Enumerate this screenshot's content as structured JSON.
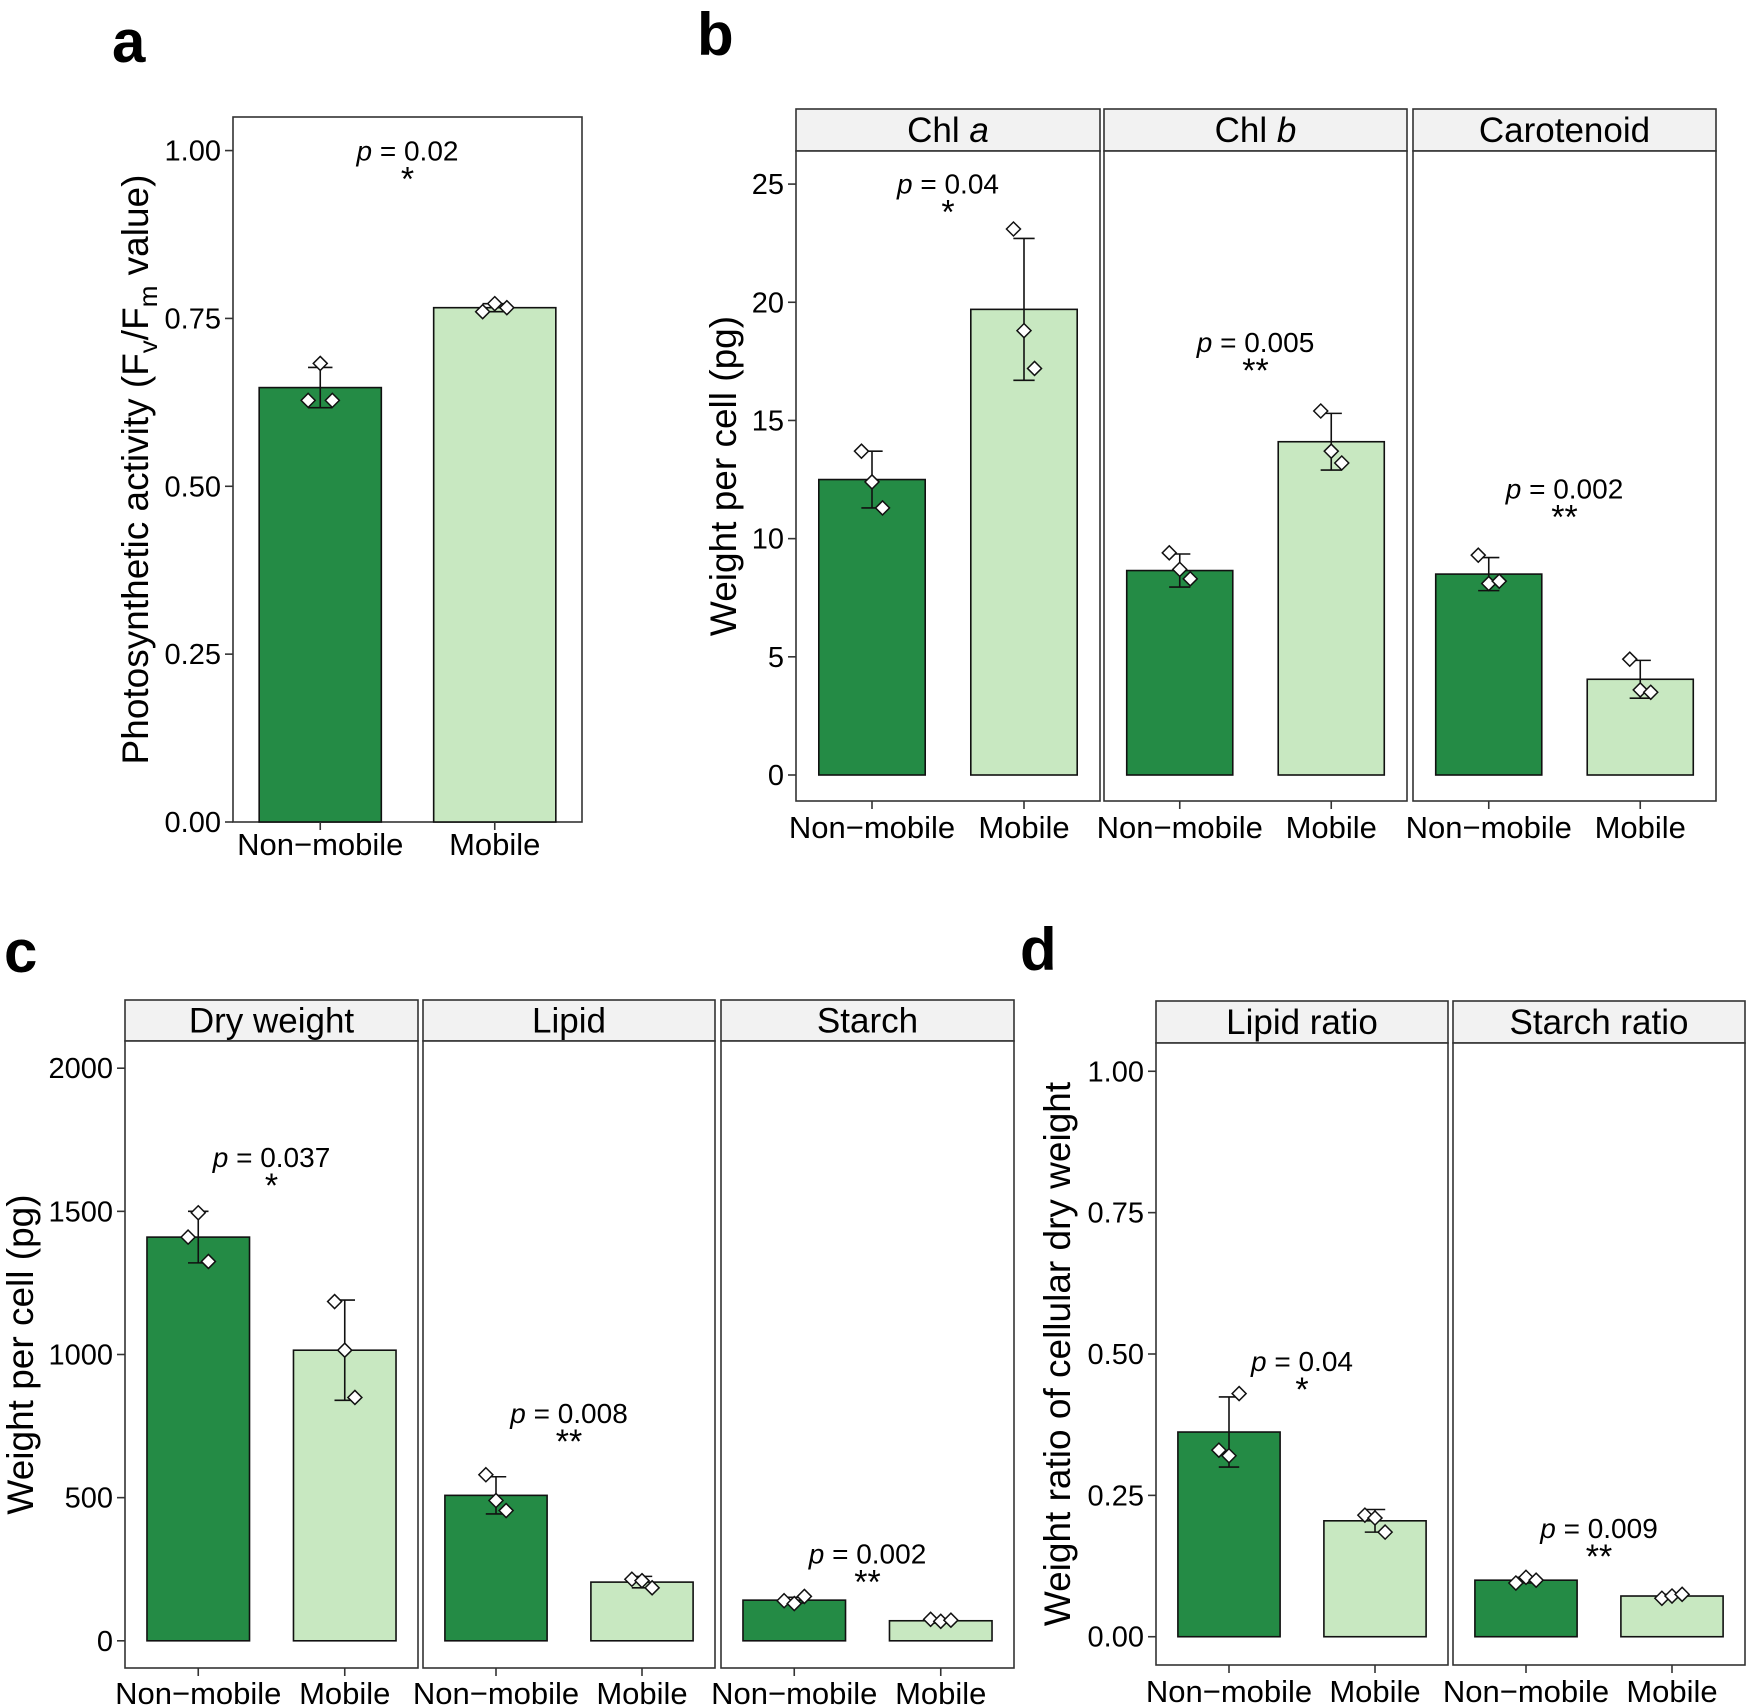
{
  "chart_data": [
    {
      "type": "bar",
      "panel": "a",
      "ylabel_main": "Photosynthetic activity (F",
      "ylabel_sub_v": "v",
      "ylabel_mid": "/F",
      "ylabel_sub_m": "m",
      "ylabel_end": " value)",
      "ylim": [
        0,
        1.05
      ],
      "yticks": [
        0,
        0.25,
        0.5,
        0.75,
        1.0
      ],
      "ytick_labels": [
        "0.00",
        "0.25",
        "0.50",
        "0.75",
        "1.00"
      ],
      "facets": [
        {
          "strip": "",
          "categories": [
            "Non−mobile",
            "Mobile"
          ],
          "values": [
            0.647,
            0.766
          ],
          "errors": [
            0.03,
            0.006
          ],
          "points": [
            [
              0.628,
              0.683,
              0.628
            ],
            [
              0.76,
              0.772,
              0.766
            ]
          ],
          "p_label": "p",
          "p_text": " = 0.02",
          "stars": "*",
          "p_y": 0.985
        }
      ]
    },
    {
      "type": "bar",
      "panel": "b",
      "ylabel": "Weight per cell (pg)",
      "ylim": [
        -1.1,
        26.4
      ],
      "yticks": [
        0,
        5,
        10,
        15,
        20,
        25
      ],
      "ytick_labels": [
        "0",
        "5",
        "10",
        "15",
        "20",
        "25"
      ],
      "facets": [
        {
          "strip_main": "Chl ",
          "strip_italic": "a",
          "categories": [
            "Non−mobile",
            "Mobile"
          ],
          "values": [
            12.5,
            19.7
          ],
          "errors": [
            1.2,
            3.0
          ],
          "points": [
            [
              13.7,
              12.4,
              11.3
            ],
            [
              23.1,
              18.8,
              17.2
            ]
          ],
          "p_label": "p",
          "p_text": " = 0.04",
          "stars": "*",
          "p_y": 24.6
        },
        {
          "strip_main": "Chl ",
          "strip_italic": "b",
          "categories": [
            "Non−mobile",
            "Mobile"
          ],
          "values": [
            8.65,
            14.1
          ],
          "errors": [
            0.7,
            1.2
          ],
          "points": [
            [
              9.4,
              8.7,
              8.3
            ],
            [
              15.4,
              13.7,
              13.2
            ]
          ],
          "p_label": "p",
          "p_text": " = 0.005",
          "stars": "**",
          "p_y": 17.9
        },
        {
          "strip_main": "Carotenoid",
          "strip_italic": "",
          "categories": [
            "Non−mobile",
            "Mobile"
          ],
          "values": [
            8.5,
            4.05
          ],
          "errors": [
            0.7,
            0.8
          ],
          "points": [
            [
              9.3,
              8.1,
              8.2
            ],
            [
              4.9,
              3.6,
              3.5
            ]
          ],
          "p_label": "p",
          "p_text": " = 0.002",
          "stars": "**",
          "p_y": 11.7
        }
      ]
    },
    {
      "type": "bar",
      "panel": "c",
      "ylabel": "Weight per cell (pg)",
      "ylim": [
        -95,
        2095
      ],
      "yticks": [
        0,
        500,
        1000,
        1500,
        2000
      ],
      "ytick_labels": [
        "0",
        "500",
        "1000",
        "1500",
        "2000"
      ],
      "facets": [
        {
          "strip_main": "Dry weight",
          "strip_italic": "",
          "categories": [
            "Non−mobile",
            "Mobile"
          ],
          "values": [
            1410,
            1015
          ],
          "errors": [
            90,
            175
          ],
          "points": [
            [
              1410,
              1495,
              1325
            ],
            [
              1185,
              1015,
              850
            ]
          ],
          "p_label": "p",
          "p_text": " = 0.037",
          "stars": "*",
          "p_y": 1655
        },
        {
          "strip_main": "Lipid",
          "strip_italic": "",
          "categories": [
            "Non−mobile",
            "Mobile"
          ],
          "values": [
            508,
            205
          ],
          "errors": [
            65,
            20
          ],
          "points": [
            [
              580,
              490,
              455
            ],
            [
              215,
              210,
              185
            ]
          ],
          "p_label": "p",
          "p_text": " = 0.008",
          "stars": "**",
          "p_y": 760
        },
        {
          "strip_main": "Starch",
          "strip_italic": "",
          "categories": [
            "Non−mobile",
            "Mobile"
          ],
          "values": [
            142,
            70
          ],
          "errors": [
            10,
            8
          ],
          "points": [
            [
              140,
              130,
              155
            ],
            [
              75,
              68,
              72
            ]
          ],
          "p_label": "p",
          "p_text": " = 0.002",
          "stars": "**",
          "p_y": 270
        }
      ]
    },
    {
      "type": "bar",
      "panel": "d",
      "ylabel": "Weight ratio of cellular dry weight",
      "ylim": [
        -0.05,
        1.05
      ],
      "yticks": [
        0,
        0.25,
        0.5,
        0.75,
        1.0
      ],
      "ytick_labels": [
        "0.00",
        "0.25",
        "0.50",
        "0.75",
        "1.00"
      ],
      "facets": [
        {
          "strip_main": "Lipid ratio",
          "strip_italic": "",
          "categories": [
            "Non−mobile",
            "Mobile"
          ],
          "values": [
            0.362,
            0.205
          ],
          "errors": [
            0.062,
            0.02
          ],
          "points": [
            [
              0.33,
              0.32,
              0.43
            ],
            [
              0.215,
              0.21,
              0.185
            ]
          ],
          "p_label": "p",
          "p_text": " = 0.04",
          "stars": "*",
          "p_y": 0.47
        },
        {
          "strip_main": "Starch ratio",
          "strip_italic": "",
          "categories": [
            "Non−mobile",
            "Mobile"
          ],
          "values": [
            0.1,
            0.072
          ],
          "errors": [
            0.005,
            0.003
          ],
          "points": [
            [
              0.095,
              0.105,
              0.1
            ],
            [
              0.068,
              0.072,
              0.075
            ]
          ],
          "p_label": "p",
          "p_text": " = 0.009",
          "stars": "**",
          "p_y": 0.175
        }
      ]
    }
  ],
  "colors": {
    "non_mobile": "#248b45",
    "mobile": "#c8e8c1",
    "strip_fill": "#f2f2f2",
    "frame": "#333333",
    "point_fill": "#ffffff"
  }
}
